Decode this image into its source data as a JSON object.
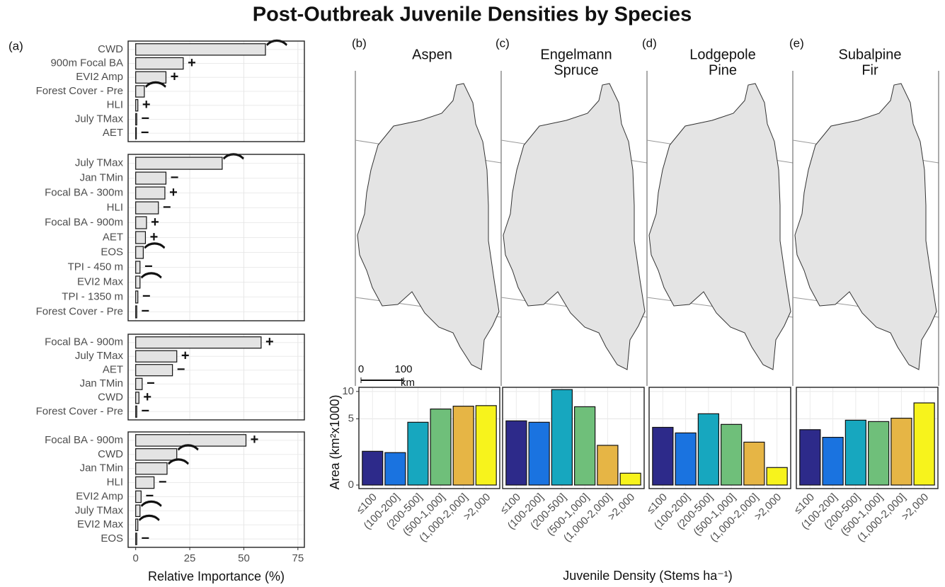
{
  "title": "Post-Outbreak Juvenile Densities by Species",
  "x_label": "Juvenile Density (Stems ha⁻¹)",
  "scale_bar": {
    "ticks": [
      0,
      100
    ],
    "unit": "km"
  },
  "chart_data": [
    {
      "type": "barh",
      "panel_label": "(a)",
      "color": "#e3e3e3",
      "categories": [
        "CWD",
        "900m Focal BA",
        "EVI2 Amp",
        "Forest Cover - Pre",
        "HLI",
        "July TMax",
        "AET"
      ],
      "values": [
        60,
        22,
        14,
        4,
        1,
        0.5,
        0.3
      ],
      "effects": [
        "⌒",
        "+",
        "+",
        "⌒",
        "+",
        "−",
        "−"
      ],
      "xlim": [
        -3.5,
        78
      ],
      "xticks": [
        0,
        25,
        50,
        75
      ],
      "grid": true
    },
    {
      "type": "barh",
      "color": "#e3e3e3",
      "categories": [
        "July TMax",
        "Jan TMin",
        "Focal BA - 300m",
        "HLI",
        "Focal BA - 900m",
        "AET",
        "EOS",
        "TPI - 450 m",
        "EVI2 Max",
        "TPI - 1350 m",
        "Forest Cover - Pre"
      ],
      "values": [
        40,
        14,
        13.5,
        10.5,
        5,
        4.5,
        3.5,
        2,
        2,
        1,
        0.5
      ],
      "effects": [
        "⌒",
        "−",
        "+",
        "−",
        "+",
        "+",
        "⌒",
        "−",
        "⌒",
        "−",
        "−"
      ],
      "xlim": [
        -3.5,
        78
      ],
      "xticks": [
        0,
        25,
        50,
        75
      ],
      "grid": true
    },
    {
      "type": "barh",
      "color": "#e3e3e3",
      "categories": [
        "Focal BA - 900m",
        "July TMax",
        "AET",
        "Jan TMin",
        "CWD",
        "Forest Cover - Pre"
      ],
      "values": [
        58,
        19,
        17,
        3,
        1.5,
        0.5
      ],
      "effects": [
        "+",
        "+",
        "−",
        "−",
        "+",
        "−"
      ],
      "xlim": [
        -3.5,
        78
      ],
      "xticks": [
        0,
        25,
        50,
        75
      ],
      "grid": true
    },
    {
      "type": "barh",
      "color": "#e3e3e3",
      "categories": [
        "Focal BA - 900m",
        "CWD",
        "Jan TMin",
        "HLI",
        "EVI2 Amp",
        "July TMax",
        "EVI2 Max",
        "EOS"
      ],
      "values": [
        51,
        19,
        14.5,
        8.5,
        2.5,
        2,
        1,
        0.5
      ],
      "effects": [
        "+",
        "⌒",
        "⌒",
        "−",
        "−",
        "⌒",
        "⌒",
        "−"
      ],
      "xlim": [
        -3.5,
        78
      ],
      "xticks": [
        0,
        25,
        50,
        75
      ],
      "grid": true,
      "xlabel": "Relative Importance (%)"
    },
    {
      "type": "bar",
      "panel_label": "(b)",
      "title_lines": [
        "Aspen"
      ],
      "categories": [
        "≤100",
        "(100-200]",
        "(200-500]",
        "(500-1,000]",
        "(1,000-2,000]",
        ">2,000"
      ],
      "values": [
        1.3,
        1.2,
        4.5,
        6.6,
        7.1,
        7.2
      ],
      "colors": [
        "#2d2a8a",
        "#1a73e0",
        "#17a7bf",
        "#6fbf7a",
        "#e6b545",
        "#f7f31c"
      ],
      "ylim": [
        0,
        10.9
      ],
      "yticks": [
        0,
        5,
        10
      ],
      "y_scale": "sqrt",
      "grid": true,
      "ylabel": "Area (km²x1000)"
    },
    {
      "type": "bar",
      "panel_label": "(c)",
      "title_lines": [
        "Engelmann",
        "Spruce"
      ],
      "categories": [
        "≤100",
        "(100-200]",
        "(200-500]",
        "(500-1,000]",
        "(1,000-2,000]",
        ">2,000"
      ],
      "values": [
        4.7,
        4.5,
        10.4,
        7.0,
        1.8,
        0.16
      ],
      "colors": [
        "#2d2a8a",
        "#1a73e0",
        "#17a7bf",
        "#6fbf7a",
        "#e6b545",
        "#f7f31c"
      ],
      "ylim": [
        0,
        10.9
      ],
      "yticks": [
        0,
        5,
        10
      ],
      "y_scale": "sqrt",
      "grid": true
    },
    {
      "type": "bar",
      "panel_label": "(d)",
      "title_lines": [
        "Lodgepole",
        "Pine"
      ],
      "categories": [
        "≤100",
        "(100-200]",
        "(200-500]",
        "(500-1,000]",
        "(1,000-2,000]",
        ">2,000"
      ],
      "values": [
        3.8,
        3.1,
        5.8,
        4.2,
        2.1,
        0.35
      ],
      "colors": [
        "#2d2a8a",
        "#1a73e0",
        "#17a7bf",
        "#6fbf7a",
        "#e6b545",
        "#f7f31c"
      ],
      "ylim": [
        0,
        10.9
      ],
      "yticks": [
        0,
        5,
        10
      ],
      "y_scale": "sqrt",
      "grid": true
    },
    {
      "type": "bar",
      "panel_label": "(e)",
      "title_lines": [
        "Subalpine",
        "Fir"
      ],
      "categories": [
        "≤100",
        "(100-200]",
        "(200-500]",
        "(500-1,000]",
        "(1,000-2,000]",
        ">2,000"
      ],
      "values": [
        3.5,
        2.6,
        4.8,
        4.6,
        5.1,
        7.7
      ],
      "colors": [
        "#2d2a8a",
        "#1a73e0",
        "#17a7bf",
        "#6fbf7a",
        "#e6b545",
        "#f7f31c"
      ],
      "ylim": [
        0,
        10.9
      ],
      "yticks": [
        0,
        5,
        10
      ],
      "y_scale": "sqrt",
      "grid": true
    }
  ]
}
